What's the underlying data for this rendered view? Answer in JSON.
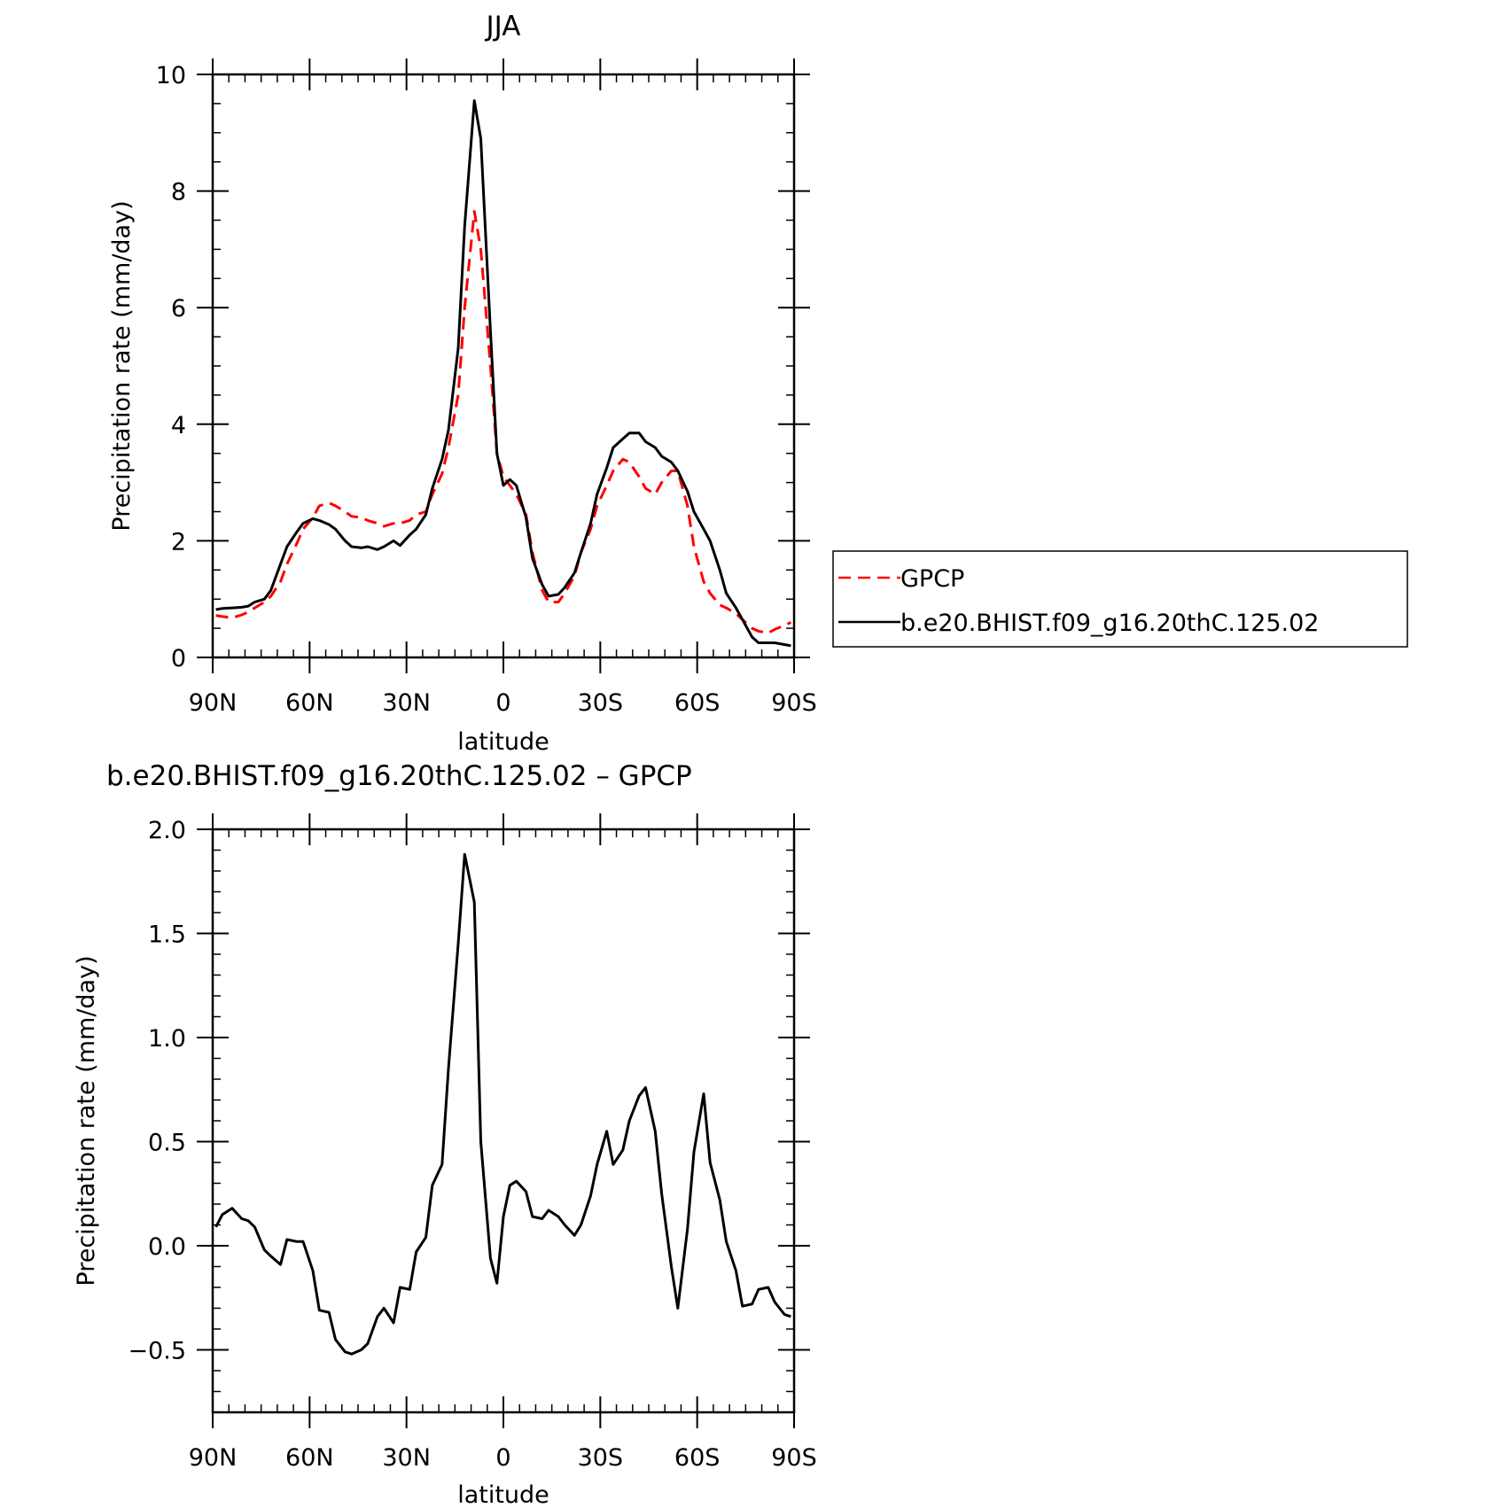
{
  "chart_data": [
    {
      "type": "line",
      "title": "JJA",
      "xlabel": "latitude",
      "ylabel": "Precipitation rate (mm/day)",
      "xlim": [
        90,
        -90
      ],
      "ylim": [
        0,
        10
      ],
      "x_ticks": [
        {
          "value": 90,
          "label": "90N"
        },
        {
          "value": 60,
          "label": "60N"
        },
        {
          "value": 30,
          "label": "30N"
        },
        {
          "value": 0,
          "label": "0"
        },
        {
          "value": -30,
          "label": "30S"
        },
        {
          "value": -60,
          "label": "60S"
        },
        {
          "value": -90,
          "label": "90S"
        }
      ],
      "y_ticks": [
        {
          "value": 0,
          "label": "0"
        },
        {
          "value": 2,
          "label": "2"
        },
        {
          "value": 4,
          "label": "4"
        },
        {
          "value": 6,
          "label": "6"
        },
        {
          "value": 8,
          "label": "8"
        },
        {
          "value": 10,
          "label": "10"
        }
      ],
      "grid": false,
      "legend": "right",
      "series": [
        {
          "name": "GPCP",
          "color": "#ff0000",
          "dash": "dashed",
          "x": [
            89,
            87,
            84,
            81,
            79,
            77,
            74,
            72,
            69,
            67,
            64,
            62,
            59,
            57,
            54,
            52,
            49,
            47,
            44,
            42,
            39,
            37,
            34,
            32,
            29,
            27,
            24,
            22,
            19,
            17,
            14,
            12,
            9,
            7,
            4,
            2,
            0,
            -2,
            -4,
            -7,
            -9,
            -12,
            -14,
            -17,
            -19,
            -22,
            -24,
            -27,
            -29,
            -32,
            -34,
            -37,
            -39,
            -42,
            -44,
            -47,
            -49,
            -52,
            -54,
            -57,
            -59,
            -62,
            -64,
            -67,
            -69,
            -72,
            -74,
            -77,
            -79,
            -82,
            -84,
            -87,
            -89
          ],
          "values": [
            0.72,
            0.7,
            0.68,
            0.73,
            0.78,
            0.85,
            0.95,
            1.05,
            1.3,
            1.6,
            1.95,
            2.2,
            2.4,
            2.6,
            2.65,
            2.6,
            2.5,
            2.42,
            2.4,
            2.35,
            2.3,
            2.25,
            2.3,
            2.3,
            2.35,
            2.45,
            2.5,
            2.8,
            3.15,
            3.6,
            4.5,
            6.0,
            7.65,
            7.0,
            5.0,
            3.5,
            3.1,
            2.95,
            2.8,
            2.45,
            1.8,
            1.15,
            0.95,
            0.95,
            1.1,
            1.4,
            1.8,
            2.2,
            2.6,
            2.95,
            3.2,
            3.4,
            3.35,
            3.1,
            2.9,
            2.8,
            3.0,
            3.2,
            3.2,
            2.6,
            1.9,
            1.3,
            1.1,
            0.9,
            0.85,
            0.75,
            0.65,
            0.5,
            0.45,
            0.42,
            0.48,
            0.55,
            0.6
          ]
        },
        {
          "name": "b.e20.BHIST.f09_g16.20thC.125.02",
          "color": "#000000",
          "dash": "solid",
          "x": [
            89,
            87,
            84,
            81,
            79,
            77,
            74,
            72,
            69,
            67,
            64,
            62,
            59,
            57,
            54,
            52,
            49,
            47,
            44,
            42,
            39,
            37,
            34,
            32,
            29,
            27,
            24,
            22,
            19,
            17,
            14,
            12,
            9,
            7,
            4,
            2,
            0,
            -2,
            -4,
            -7,
            -9,
            -12,
            -14,
            -17,
            -19,
            -22,
            -24,
            -27,
            -29,
            -32,
            -34,
            -37,
            -39,
            -42,
            -44,
            -47,
            -49,
            -52,
            -54,
            -57,
            -59,
            -62,
            -64,
            -67,
            -69,
            -72,
            -74,
            -77,
            -79,
            -82,
            -84,
            -87,
            -89
          ],
          "values": [
            0.82,
            0.84,
            0.85,
            0.86,
            0.88,
            0.95,
            1.0,
            1.15,
            1.6,
            1.9,
            2.15,
            2.3,
            2.38,
            2.35,
            2.28,
            2.2,
            2.0,
            1.9,
            1.88,
            1.9,
            1.85,
            1.9,
            2.0,
            1.92,
            2.1,
            2.2,
            2.45,
            2.9,
            3.4,
            3.9,
            5.3,
            7.4,
            9.55,
            8.9,
            5.6,
            3.5,
            2.95,
            3.05,
            2.95,
            2.4,
            1.7,
            1.25,
            1.05,
            1.08,
            1.2,
            1.45,
            1.8,
            2.3,
            2.8,
            3.25,
            3.6,
            3.75,
            3.85,
            3.85,
            3.7,
            3.6,
            3.45,
            3.35,
            3.2,
            2.85,
            2.5,
            2.2,
            2.0,
            1.5,
            1.1,
            0.85,
            0.65,
            0.35,
            0.25,
            0.25,
            0.25,
            0.22,
            0.2
          ]
        }
      ]
    },
    {
      "type": "line",
      "title": "b.e20.BHIST.f09_g16.20thC.125.02 – GPCP",
      "xlabel": "latitude",
      "ylabel": "Precipitation rate (mm/day)",
      "xlim": [
        90,
        -90
      ],
      "ylim": [
        -0.8,
        2.0
      ],
      "x_ticks": [
        {
          "value": 90,
          "label": "90N"
        },
        {
          "value": 60,
          "label": "60N"
        },
        {
          "value": 30,
          "label": "30N"
        },
        {
          "value": 0,
          "label": "0"
        },
        {
          "value": -30,
          "label": "30S"
        },
        {
          "value": -60,
          "label": "60S"
        },
        {
          "value": -90,
          "label": "90S"
        }
      ],
      "y_ticks": [
        {
          "value": -0.5,
          "label": "−0.5"
        },
        {
          "value": 0,
          "label": "0.0"
        },
        {
          "value": 0.5,
          "label": "0.5"
        },
        {
          "value": 1.0,
          "label": "1.0"
        },
        {
          "value": 1.5,
          "label": "1.5"
        },
        {
          "value": 2.0,
          "label": "2.0"
        }
      ],
      "grid": false,
      "series": [
        {
          "color": "#000000",
          "dash": "solid",
          "x": [
            89,
            87,
            84,
            81,
            79,
            77,
            74,
            72,
            69,
            67,
            64,
            62,
            59,
            57,
            54,
            52,
            49,
            47,
            44,
            42,
            39,
            37,
            34,
            32,
            29,
            27,
            24,
            22,
            19,
            17,
            14,
            12,
            9,
            7,
            4,
            2,
            0,
            -2,
            -4,
            -7,
            -9,
            -12,
            -14,
            -17,
            -19,
            -22,
            -24,
            -27,
            -29,
            -32,
            -34,
            -37,
            -39,
            -42,
            -44,
            -47,
            -49,
            -52,
            -54,
            -57,
            -59,
            -62,
            -64,
            -67,
            -69,
            -72,
            -74,
            -77,
            -79,
            -82,
            -84,
            -87,
            -89
          ],
          "values": [
            0.09,
            0.15,
            0.18,
            0.13,
            0.12,
            0.09,
            -0.02,
            -0.05,
            -0.09,
            0.03,
            0.02,
            0.02,
            -0.12,
            -0.31,
            -0.32,
            -0.45,
            -0.51,
            -0.52,
            -0.5,
            -0.47,
            -0.34,
            -0.3,
            -0.37,
            -0.2,
            -0.21,
            -0.03,
            0.04,
            0.29,
            0.39,
            0.85,
            1.45,
            1.88,
            1.65,
            0.5,
            -0.06,
            -0.18,
            0.14,
            0.29,
            0.31,
            0.26,
            0.14,
            0.13,
            0.17,
            0.14,
            0.1,
            0.05,
            0.1,
            0.24,
            0.39,
            0.55,
            0.39,
            0.46,
            0.6,
            0.72,
            0.76,
            0.55,
            0.25,
            -0.1,
            -0.3,
            0.08,
            0.45,
            0.73,
            0.4,
            0.22,
            0.02,
            -0.12,
            -0.29,
            -0.28,
            -0.21,
            -0.2,
            -0.27,
            -0.33,
            -0.34
          ]
        }
      ]
    }
  ]
}
